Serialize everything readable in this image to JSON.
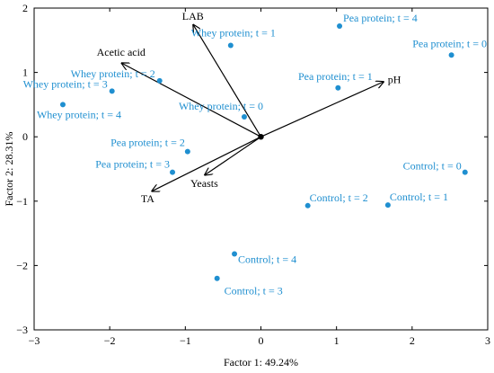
{
  "chart_data": {
    "type": "scatter",
    "xlabel": "Factor 1: 49.24%",
    "ylabel": "Factor 2: 28.31%",
    "xlim": [
      -3,
      3
    ],
    "ylim": [
      -3,
      2
    ],
    "xticks": [
      "−3",
      "−2",
      "−1",
      "0",
      "1",
      "2",
      "3"
    ],
    "yticks": [
      "−3",
      "−2",
      "−1",
      "0",
      "1",
      "2"
    ],
    "points": [
      {
        "label": "Pea protein; t = 4",
        "x": 1.04,
        "y": 1.72
      },
      {
        "label": "Pea protein; t = 0",
        "x": 2.52,
        "y": 1.27
      },
      {
        "label": "Pea protein; t = 1",
        "x": 1.02,
        "y": 0.76
      },
      {
        "label": "Pea protein; t = 2",
        "x": -0.97,
        "y": -0.23
      },
      {
        "label": "Pea protein; t = 3",
        "x": -1.17,
        "y": -0.55
      },
      {
        "label": "Whey protein; t = 1",
        "x": -0.4,
        "y": 1.42
      },
      {
        "label": "Whey protein; t = 2",
        "x": -1.34,
        "y": 0.87
      },
      {
        "label": "Whey protein; t = 3",
        "x": -1.97,
        "y": 0.71
      },
      {
        "label": "Whey protein; t = 4",
        "x": -2.62,
        "y": 0.5
      },
      {
        "label": "Whey protein; t = 0",
        "x": -0.22,
        "y": 0.31
      },
      {
        "label": "Control; t = 0",
        "x": 2.7,
        "y": -0.55
      },
      {
        "label": "Control; t = 1",
        "x": 1.68,
        "y": -1.06
      },
      {
        "label": "Control; t = 2",
        "x": 0.62,
        "y": -1.07
      },
      {
        "label": "Control; t = 4",
        "x": -0.35,
        "y": -1.82
      },
      {
        "label": "Control; t = 3",
        "x": -0.58,
        "y": -2.2
      }
    ],
    "vectors": [
      {
        "label": "LAB",
        "x": -0.9,
        "y": 1.75
      },
      {
        "label": "Acetic acid",
        "x": -1.85,
        "y": 1.15
      },
      {
        "label": "pH",
        "x": 1.63,
        "y": 0.86
      },
      {
        "label": "TA",
        "x": -1.45,
        "y": -0.85
      },
      {
        "label": "Yeasts",
        "x": -0.75,
        "y": -0.6
      }
    ]
  }
}
